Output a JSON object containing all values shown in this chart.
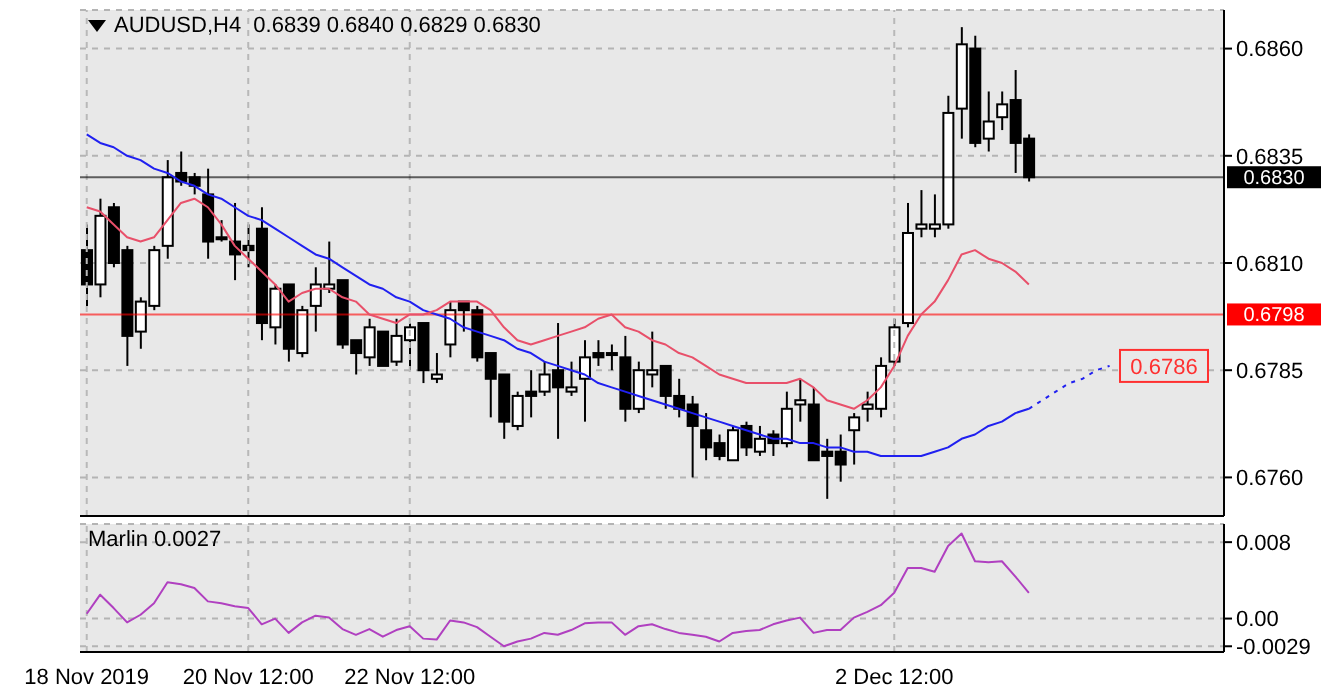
{
  "chart_data": [
    {
      "type": "candlestick",
      "title": "AUDUSD,H4  0.6839 0.6840 0.6829 0.6830",
      "categories": [
        null,
        null,
        null,
        null,
        null,
        null,
        null,
        null,
        null,
        null,
        null,
        null,
        null,
        null,
        null,
        null,
        null,
        null,
        null,
        null,
        null,
        null,
        null,
        null,
        null,
        null,
        null,
        null,
        null,
        null,
        null,
        null,
        null,
        null,
        null,
        null,
        null,
        null,
        null,
        null,
        null,
        null,
        null,
        null,
        null,
        null,
        null,
        null,
        null,
        null,
        null,
        null,
        null,
        null,
        null,
        null,
        null,
        null,
        null,
        null,
        null,
        null,
        null,
        null,
        null,
        null,
        null,
        null,
        null,
        null,
        null,
        null,
        null,
        null,
        null,
        null,
        null,
        null,
        null,
        null,
        null,
        null,
        null,
        null,
        null
      ],
      "ohlc": [
        [
          0.6813,
          0.6819,
          0.68,
          0.6805
        ],
        [
          0.6805,
          0.6825,
          0.6802,
          0.6821
        ],
        [
          0.6823,
          0.6824,
          0.6809,
          0.681
        ],
        [
          0.6813,
          0.6814,
          0.6786,
          0.6793
        ],
        [
          0.6794,
          0.6802,
          0.679,
          0.6801
        ],
        [
          0.68,
          0.6814,
          0.6799,
          0.6813
        ],
        [
          0.6814,
          0.6834,
          0.6811,
          0.683
        ],
        [
          0.6831,
          0.6836,
          0.6828,
          0.6829
        ],
        [
          0.683,
          0.6831,
          0.6826,
          0.6828
        ],
        [
          0.6826,
          0.6832,
          0.6811,
          0.6815
        ],
        [
          0.6816,
          0.682,
          0.6815,
          0.6816
        ],
        [
          0.6815,
          0.6824,
          0.6806,
          0.6812
        ],
        [
          0.6814,
          0.6819,
          0.6809,
          0.6813
        ],
        [
          0.6818,
          0.6823,
          0.6792,
          0.6796
        ],
        [
          0.6795,
          0.6805,
          0.6791,
          0.6804
        ],
        [
          0.6805,
          0.6805,
          0.6787,
          0.679
        ],
        [
          0.6789,
          0.68,
          0.6788,
          0.6799
        ],
        [
          0.68,
          0.6809,
          0.6794,
          0.6805
        ],
        [
          0.6804,
          0.6815,
          0.6803,
          0.6805
        ],
        [
          0.6806,
          0.6806,
          0.679,
          0.6791
        ],
        [
          0.6792,
          0.6792,
          0.6784,
          0.6789
        ],
        [
          0.6788,
          0.6797,
          0.6786,
          0.6795
        ],
        [
          0.6794,
          0.6794,
          0.6786,
          0.6786
        ],
        [
          0.6787,
          0.6797,
          0.6786,
          0.6793
        ],
        [
          0.6792,
          0.6796,
          0.6785,
          0.6795
        ],
        [
          0.6796,
          0.6796,
          0.6782,
          0.6785
        ],
        [
          0.6783,
          0.6789,
          0.6782,
          0.6784
        ],
        [
          0.6791,
          0.6801,
          0.6788,
          0.6799
        ],
        [
          0.6801,
          0.6801,
          0.6794,
          0.6799
        ],
        [
          0.6799,
          0.68,
          0.6787,
          0.6788
        ],
        [
          0.6789,
          0.6789,
          0.6774,
          0.6783
        ],
        [
          0.6784,
          0.6784,
          0.6769,
          0.6773
        ],
        [
          0.6772,
          0.678,
          0.6771,
          0.6779
        ],
        [
          0.678,
          0.6785,
          0.6774,
          0.6779
        ],
        [
          0.678,
          0.6787,
          0.6779,
          0.6784
        ],
        [
          0.6785,
          0.6796,
          0.6769,
          0.6781
        ],
        [
          0.678,
          0.6787,
          0.6779,
          0.6781
        ],
        [
          0.6783,
          0.6792,
          0.6773,
          0.6788
        ],
        [
          0.6789,
          0.6792,
          0.6786,
          0.6788
        ],
        [
          0.6789,
          0.6791,
          0.6785,
          0.6789
        ],
        [
          0.6788,
          0.6793,
          0.6773,
          0.6776
        ],
        [
          0.6776,
          0.6787,
          0.6775,
          0.6785
        ],
        [
          0.6784,
          0.6794,
          0.6781,
          0.6785
        ],
        [
          0.6786,
          0.6786,
          0.6776,
          0.6779
        ],
        [
          0.6779,
          0.6783,
          0.6774,
          0.6776
        ],
        [
          0.6777,
          0.6779,
          0.676,
          0.6772
        ],
        [
          0.6771,
          0.6775,
          0.6764,
          0.6767
        ],
        [
          0.6768,
          0.677,
          0.6764,
          0.6765
        ],
        [
          0.6764,
          0.6772,
          0.6764,
          0.6771
        ],
        [
          0.6772,
          0.6773,
          0.6765,
          0.6767
        ],
        [
          0.6766,
          0.6772,
          0.6765,
          0.6769
        ],
        [
          0.677,
          0.6771,
          0.6765,
          0.6768
        ],
        [
          0.6768,
          0.678,
          0.6767,
          0.6776
        ],
        [
          0.6777,
          0.6783,
          0.6773,
          0.6778
        ],
        [
          0.6777,
          0.6781,
          0.6764,
          0.6764
        ],
        [
          0.6766,
          0.6769,
          0.6755,
          0.6765
        ],
        [
          0.6766,
          0.677,
          0.6759,
          0.6763
        ],
        [
          0.6771,
          0.6775,
          0.6763,
          0.6774
        ],
        [
          0.6776,
          0.678,
          0.6773,
          0.6777
        ],
        [
          0.6776,
          0.6788,
          0.6774,
          0.6786
        ],
        [
          0.6787,
          0.6797,
          0.6786,
          0.6795
        ],
        [
          0.6796,
          0.6824,
          0.6795,
          0.6817
        ],
        [
          0.6818,
          0.6827,
          0.6816,
          0.6819
        ],
        [
          0.6818,
          0.6826,
          0.6816,
          0.6819
        ],
        [
          0.6819,
          0.6849,
          0.6818,
          0.6845
        ],
        [
          0.6846,
          0.6865,
          0.6839,
          0.6861
        ],
        [
          0.686,
          0.6863,
          0.6837,
          0.6838
        ],
        [
          0.6839,
          0.685,
          0.6836,
          0.6843
        ],
        [
          0.6844,
          0.685,
          0.6841,
          0.6847
        ],
        [
          0.6848,
          0.6855,
          0.6831,
          0.6838
        ],
        [
          0.6839,
          0.684,
          0.6829,
          0.683
        ],
        null,
        null,
        null,
        null,
        null,
        null,
        null,
        null,
        null,
        null,
        null,
        null,
        null,
        null
      ],
      "series": [
        {
          "type": "line",
          "color": "#2020f0",
          "values": [
            0.684,
            0.6838,
            0.6837,
            0.6835,
            0.6834,
            0.6832,
            0.6831,
            0.6829,
            0.6828,
            0.6826,
            0.6825,
            0.6823,
            0.6821,
            0.682,
            0.6818,
            0.6816,
            0.6814,
            0.6812,
            0.6811,
            0.6809,
            0.6807,
            0.6805,
            0.6804,
            0.6802,
            0.6801,
            0.6799,
            0.6798,
            0.6797,
            0.6795,
            0.6794,
            0.6793,
            0.6792,
            0.679,
            0.6789,
            0.6787,
            0.6786,
            0.6785,
            0.6784,
            0.6782,
            0.6781,
            0.678,
            0.6779,
            0.6778,
            0.6777,
            0.6776,
            0.6775,
            0.6774,
            0.6773,
            0.6772,
            0.6771,
            0.677,
            0.6769,
            0.6769,
            0.6768,
            0.6768,
            0.6767,
            0.6767,
            0.6766,
            0.6766,
            0.6765,
            0.6765,
            0.6765,
            0.6765,
            0.6766,
            0.6767,
            0.6769,
            0.677,
            0.6772,
            0.6773,
            0.6775,
            0.6776,
            null,
            null,
            null,
            null,
            null,
            null,
            null,
            null,
            null,
            null,
            null,
            null,
            null,
            null
          ]
        },
        {
          "type": "line",
          "color": "#2020f0",
          "line_style": "dotted",
          "values": [
            null,
            null,
            null,
            null,
            null,
            null,
            null,
            null,
            null,
            null,
            null,
            null,
            null,
            null,
            null,
            null,
            null,
            null,
            null,
            null,
            null,
            null,
            null,
            null,
            null,
            null,
            null,
            null,
            null,
            null,
            null,
            null,
            null,
            null,
            null,
            null,
            null,
            null,
            null,
            null,
            null,
            null,
            null,
            null,
            null,
            null,
            null,
            null,
            null,
            null,
            null,
            null,
            null,
            null,
            null,
            null,
            null,
            null,
            null,
            null,
            null,
            null,
            null,
            null,
            null,
            null,
            null,
            null,
            null,
            null,
            0.6776,
            0.6778,
            0.678,
            0.6782,
            0.6783,
            0.6785,
            0.6786,
            null,
            null,
            null,
            null,
            null,
            null,
            null,
            null
          ]
        },
        {
          "type": "line",
          "color": "#e8506a",
          "values": [
            0.6823,
            0.6822,
            0.6819,
            0.6816,
            0.6815,
            0.6816,
            0.682,
            0.6824,
            0.6825,
            0.6823,
            0.6819,
            0.6814,
            0.6811,
            0.6808,
            0.6805,
            0.6801,
            0.6803,
            0.6804,
            0.6804,
            0.6802,
            0.6801,
            0.6798,
            0.6797,
            0.6796,
            0.6798,
            0.6798,
            0.6799,
            0.6801,
            0.6801,
            0.6801,
            0.6799,
            0.6795,
            0.6792,
            0.6791,
            0.6792,
            0.6793,
            0.6794,
            0.6795,
            0.6797,
            0.6798,
            0.6795,
            0.6794,
            0.6792,
            0.6791,
            0.6789,
            0.6788,
            0.6786,
            0.6784,
            0.6783,
            0.6782,
            0.6782,
            0.6782,
            0.6782,
            0.6783,
            0.6781,
            0.6778,
            0.6777,
            0.6776,
            0.6778,
            0.6781,
            0.6786,
            0.6793,
            0.6798,
            0.6801,
            0.6806,
            0.6812,
            0.6813,
            0.6811,
            0.681,
            0.6808,
            0.6805,
            null,
            null,
            null,
            null,
            null,
            null,
            null,
            null,
            null,
            null,
            null,
            null,
            null,
            null
          ]
        }
      ],
      "ylim": [
        0.6751,
        0.6869
      ],
      "yticks": [
        {
          "value": 0.676,
          "label": "0.6760"
        },
        0.6785,
        {
          "value": 0.681,
          "label": "0.6810"
        },
        0.6835,
        {
          "value": 0.686,
          "label": "0.6860"
        }
      ],
      "ref_lines": [
        {
          "axis": "y",
          "value": 0.6798,
          "label": "0.6798",
          "color": "#ff0000"
        },
        {
          "axis": "y",
          "value": 0.683,
          "label": "0.6830",
          "color": "#000000"
        }
      ],
      "annotations": [
        {
          "text": "0.6786",
          "y": 0.6786
        }
      ],
      "grid": true,
      "tick_labels": "y"
    },
    {
      "type": "line",
      "title": "Marlin 0.0027",
      "color": "#b040c0",
      "categories": [
        "18 Nov 2019",
        null,
        null,
        null,
        null,
        null,
        null,
        null,
        null,
        null,
        null,
        null,
        "20 Nov 12:00",
        null,
        null,
        null,
        null,
        null,
        null,
        null,
        null,
        null,
        null,
        null,
        "22 Nov 12:00",
        null,
        null,
        null,
        null,
        null,
        null,
        null,
        null,
        null,
        null,
        null,
        null,
        null,
        null,
        null,
        null,
        null,
        null,
        null,
        null,
        null,
        null,
        null,
        null,
        null,
        null,
        null,
        null,
        null,
        null,
        null,
        null,
        null,
        null,
        null,
        "2 Dec 12:00",
        null,
        null,
        null,
        null,
        null,
        null,
        null,
        null,
        null,
        null,
        null,
        null,
        null,
        null,
        null,
        null,
        null,
        null,
        null,
        null,
        null,
        null,
        null,
        null
      ],
      "values": [
        0.0005,
        0.0025,
        0.0011,
        -0.0004,
        0.0004,
        0.0016,
        0.0038,
        0.0036,
        0.0032,
        0.0018,
        0.0016,
        0.0013,
        0.0011,
        -0.0006,
        0.0,
        -0.0015,
        -0.0004,
        0.0003,
        0.0001,
        -0.0011,
        -0.0017,
        -0.0011,
        -0.0019,
        -0.0012,
        -0.0008,
        -0.0021,
        -0.0022,
        -0.0002,
        -0.0004,
        -0.0009,
        -0.0019,
        -0.0029,
        -0.0024,
        -0.0021,
        -0.0015,
        -0.0017,
        -0.0012,
        -0.0005,
        -0.0004,
        -0.0004,
        -0.0017,
        -0.0008,
        -0.0006,
        -0.0011,
        -0.0015,
        -0.0017,
        -0.0019,
        -0.0024,
        -0.0015,
        -0.0013,
        -0.0012,
        -0.0006,
        -0.0002,
        0.0001,
        -0.0015,
        -0.0012,
        -0.0012,
        0.0001,
        0.0007,
        0.0014,
        0.0027,
        0.0053,
        0.0053,
        0.0049,
        0.0076,
        0.0089,
        0.006,
        0.0059,
        0.006,
        0.0044,
        0.0027,
        null,
        null,
        null,
        null,
        null,
        null,
        null,
        null,
        null,
        null,
        null,
        null,
        null,
        null
      ],
      "ylim": [
        -0.0035,
        0.0099
      ],
      "yticks": [
        -0.0029,
        {
          "value": 0,
          "label": "0.00"
        },
        0.008
      ],
      "grid": true
    }
  ]
}
